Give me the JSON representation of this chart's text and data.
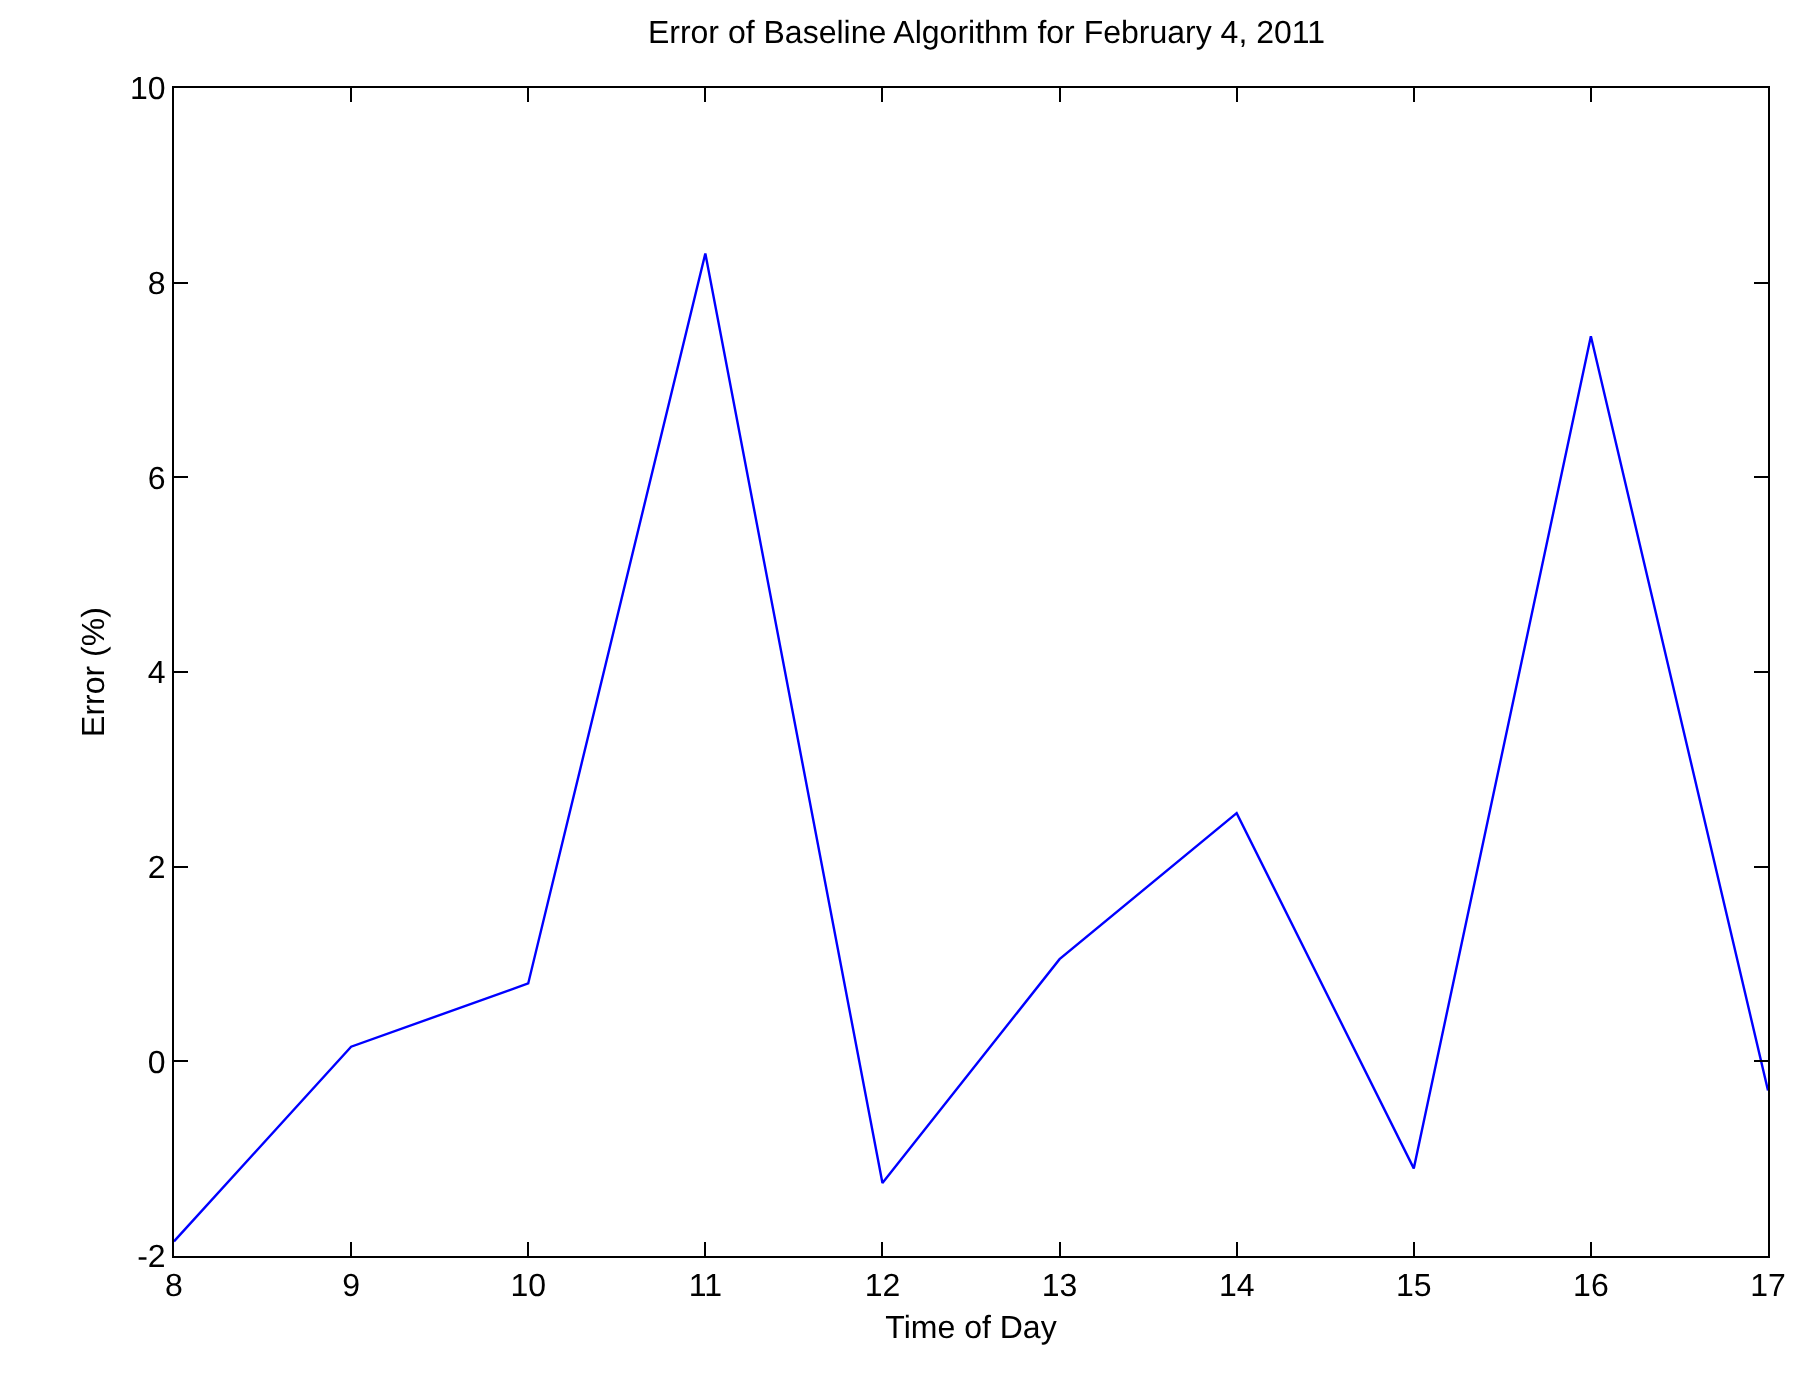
{
  "chart_data": {
    "type": "line",
    "title": "Error of Baseline Algorithm for February 4, 2011",
    "xlabel": "Time of Day",
    "ylabel": "Error (%)",
    "x": [
      8,
      9,
      10,
      11,
      12,
      13,
      14,
      15,
      16,
      17
    ],
    "series": [
      {
        "color": "#0000ff",
        "values": [
          -1.85,
          0.15,
          0.8,
          8.3,
          -1.25,
          1.05,
          2.55,
          -1.1,
          7.45,
          -0.3
        ]
      }
    ],
    "xlim": [
      8,
      17
    ],
    "xticks": [
      8,
      9,
      10,
      11,
      12,
      13,
      14,
      15,
      16,
      17
    ],
    "ylim": [
      -2,
      10
    ],
    "yticks": [
      -2,
      0,
      2,
      4,
      6,
      8,
      10
    ],
    "grid": false,
    "marker": "none",
    "line_style": "solid"
  }
}
